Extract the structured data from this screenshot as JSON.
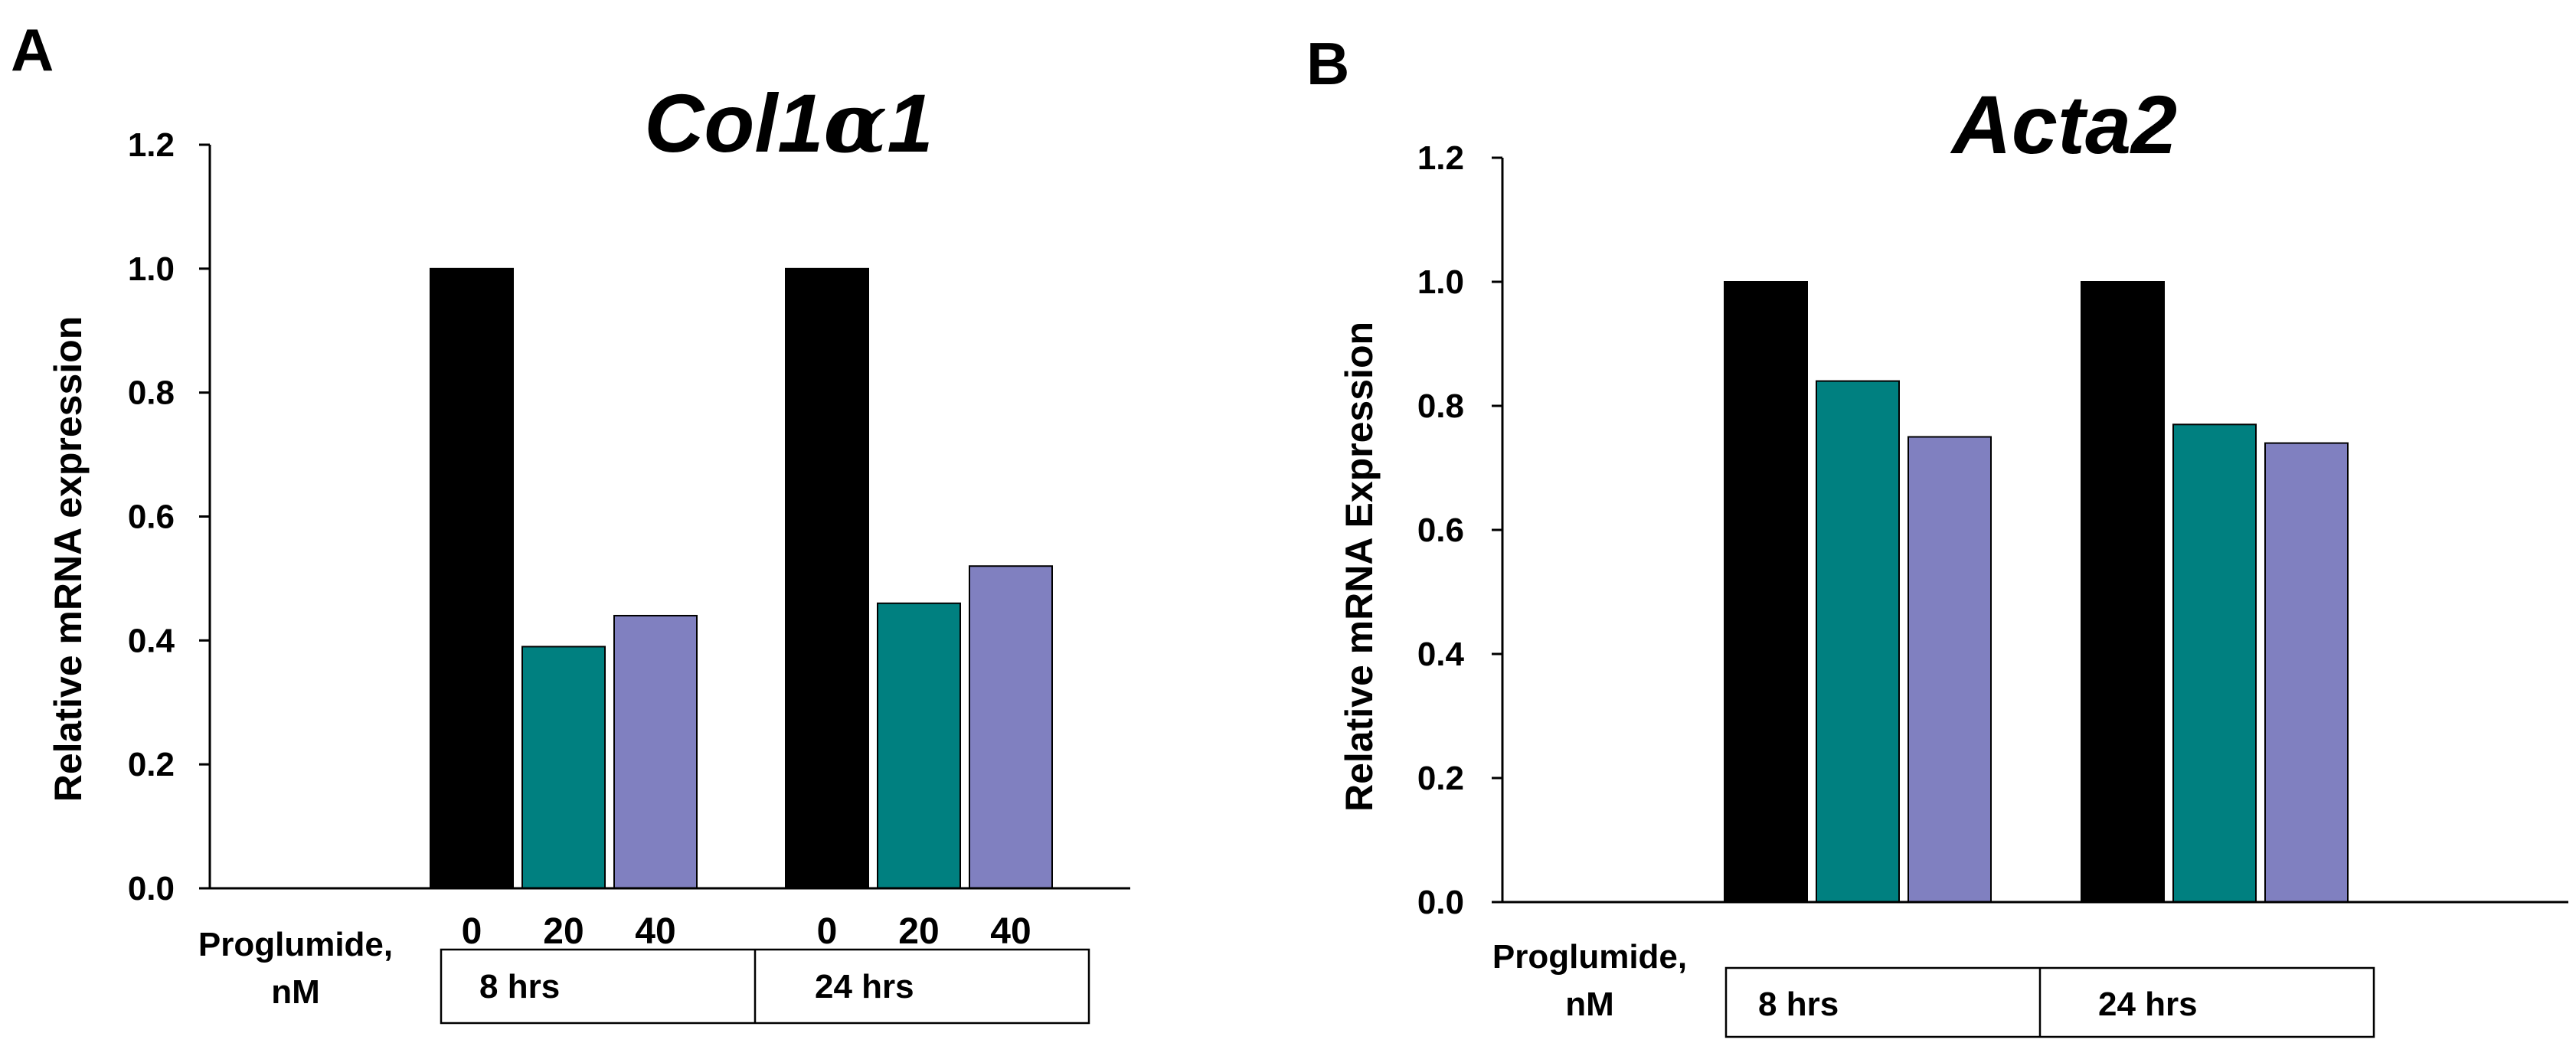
{
  "chart_data": [
    {
      "type": "bar",
      "panel": "A",
      "title": "Col1",
      "title_greek": "α",
      "title_suffix": "1",
      "ylabel": "Relative mRNA expression",
      "ylim": [
        0,
        1.2
      ],
      "yticks": [
        "0.0",
        "0.2",
        "0.4",
        "0.6",
        "0.8",
        "1.0",
        "1.2"
      ],
      "row_label_line1": "Proglumide,",
      "row_label_line2": "nM",
      "groups": [
        {
          "label": "8 hrs",
          "doses": [
            "0",
            "20",
            "40"
          ],
          "values": [
            1.0,
            0.39,
            0.44
          ]
        },
        {
          "label": "24 hrs",
          "doses": [
            "0",
            "20",
            "40"
          ],
          "values": [
            1.0,
            0.46,
            0.52
          ]
        }
      ],
      "series_colors": [
        "#000000",
        "#008080",
        "#8080c0"
      ]
    },
    {
      "type": "bar",
      "panel": "B",
      "title": "Acta2",
      "ylabel": "Relative mRNA Expression",
      "ylim": [
        0,
        1.2
      ],
      "yticks": [
        "0.0",
        "0.2",
        "0.4",
        "0.6",
        "0.8",
        "1.0",
        "1.2"
      ],
      "row_label_line1": "Proglumide,",
      "row_label_line2": "nM",
      "groups": [
        {
          "label": "8 hrs",
          "values": [
            1.0,
            0.84,
            0.75
          ]
        },
        {
          "label": "24 hrs",
          "values": [
            1.0,
            0.77,
            0.74
          ]
        }
      ],
      "series_colors": [
        "#000000",
        "#008080",
        "#8080c0"
      ]
    }
  ]
}
